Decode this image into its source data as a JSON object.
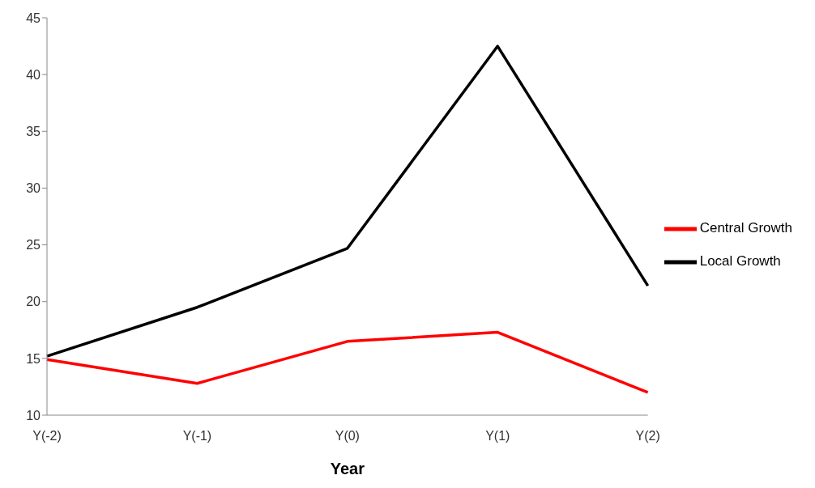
{
  "chart_data": {
    "type": "line",
    "xlabel": "Year",
    "categories": [
      "Y(-2)",
      "Y(-1)",
      "Y(0)",
      "Y(1)",
      "Y(2)"
    ],
    "series": [
      {
        "name": "Central Growth",
        "color": "#ff0000",
        "values": [
          14.9,
          12.8,
          16.5,
          17.3,
          12.0
        ]
      },
      {
        "name": "Local Growth",
        "color": "#000000",
        "values": [
          15.2,
          19.5,
          24.7,
          42.5,
          21.4
        ]
      }
    ],
    "ylim": [
      10,
      45
    ],
    "yticks": [
      10,
      15,
      20,
      25,
      30,
      35,
      40,
      45
    ],
    "grid": false,
    "legend": "right",
    "marker": "none",
    "line_style": "solid"
  }
}
